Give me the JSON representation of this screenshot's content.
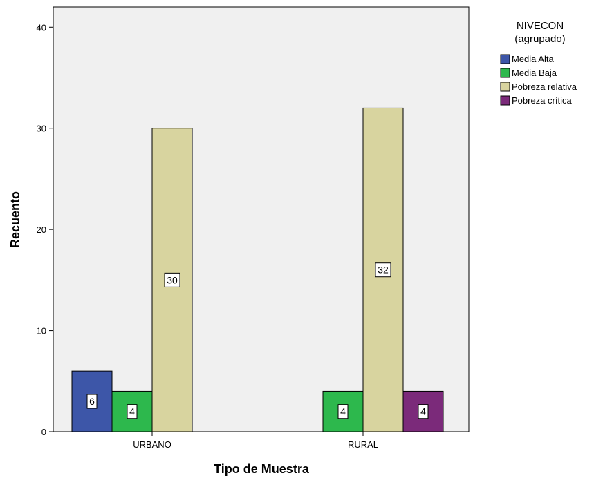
{
  "chart_data": {
    "type": "bar",
    "xlabel": "Tipo de Muestra",
    "ylabel": "Recuento",
    "ylim": [
      0,
      42
    ],
    "yticks": [
      0,
      10,
      20,
      30,
      40
    ],
    "categories": [
      "URBANO",
      "RURAL"
    ],
    "legend_title": [
      "NIVECON",
      "(agrupado)"
    ],
    "legend_position": "top-right",
    "grid": false,
    "series": [
      {
        "name": "Media Alta",
        "color": "#3d56a8",
        "values": [
          6,
          null
        ]
      },
      {
        "name": "Media Baja",
        "color": "#2db84d",
        "values": [
          4,
          4
        ]
      },
      {
        "name": "Pobreza relativa",
        "color": "#d8d49f",
        "values": [
          30,
          32
        ]
      },
      {
        "name": "Pobreza crítica",
        "color": "#7b2a7a",
        "values": [
          null,
          4
        ]
      }
    ],
    "plot_background": "#f0f0f0"
  }
}
